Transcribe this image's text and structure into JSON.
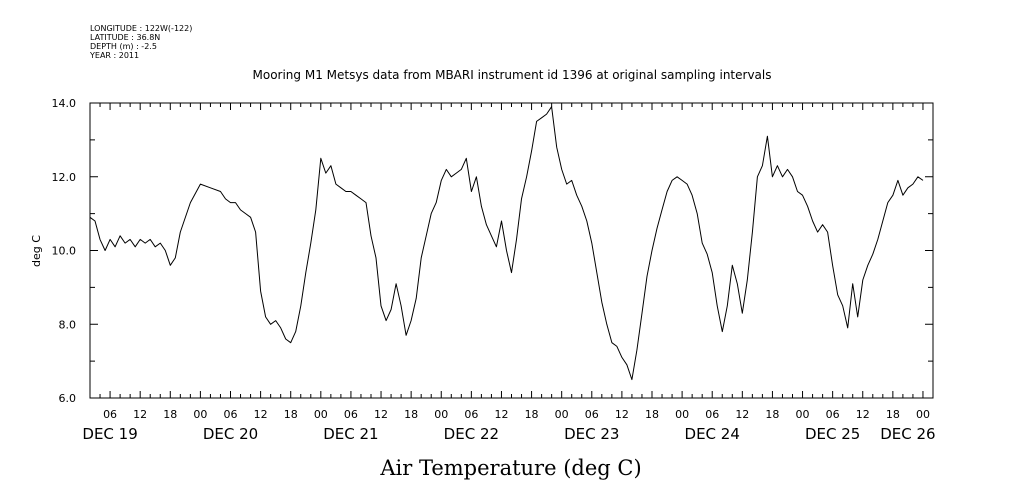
{
  "metadata": {
    "longitude": "LONGITUDE : 122W(-122)",
    "latitude": "LATITUDE : 36.8N",
    "depth": "DEPTH (m) : -2.5",
    "year": "YEAR : 2011"
  },
  "chart_data": {
    "type": "line",
    "title": "Mooring M1 Metsys data from MBARI instrument id 1396 at original sampling intervals",
    "xlabel": "Air Temperature (deg C)",
    "ylabel": "deg C",
    "ylim": [
      6.0,
      14.0
    ],
    "yticks": [
      "6.0",
      "8.0",
      "10.0",
      "12.0",
      "14.0"
    ],
    "x_unit": "hours since DEC 19 00:00",
    "xlim": [
      2,
      170
    ],
    "hour_ticks": [
      {
        "h": 6,
        "label": "06"
      },
      {
        "h": 12,
        "label": "12"
      },
      {
        "h": 18,
        "label": "18"
      },
      {
        "h": 24,
        "label": "00"
      },
      {
        "h": 30,
        "label": "06"
      },
      {
        "h": 36,
        "label": "12"
      },
      {
        "h": 42,
        "label": "18"
      },
      {
        "h": 48,
        "label": "00"
      },
      {
        "h": 54,
        "label": "06"
      },
      {
        "h": 60,
        "label": "12"
      },
      {
        "h": 66,
        "label": "18"
      },
      {
        "h": 72,
        "label": "00"
      },
      {
        "h": 78,
        "label": "06"
      },
      {
        "h": 84,
        "label": "12"
      },
      {
        "h": 90,
        "label": "18"
      },
      {
        "h": 96,
        "label": "00"
      },
      {
        "h": 102,
        "label": "06"
      },
      {
        "h": 108,
        "label": "12"
      },
      {
        "h": 114,
        "label": "18"
      },
      {
        "h": 120,
        "label": "00"
      },
      {
        "h": 126,
        "label": "06"
      },
      {
        "h": 132,
        "label": "12"
      },
      {
        "h": 138,
        "label": "18"
      },
      {
        "h": 144,
        "label": "00"
      },
      {
        "h": 150,
        "label": "06"
      },
      {
        "h": 156,
        "label": "12"
      },
      {
        "h": 162,
        "label": "18"
      },
      {
        "h": 168,
        "label": "00"
      }
    ],
    "day_labels": [
      {
        "h": 6,
        "label": "DEC 19"
      },
      {
        "h": 30,
        "label": "DEC 20"
      },
      {
        "h": 54,
        "label": "DEC 21"
      },
      {
        "h": 78,
        "label": "DEC 22"
      },
      {
        "h": 102,
        "label": "DEC 23"
      },
      {
        "h": 126,
        "label": "DEC 24"
      },
      {
        "h": 150,
        "label": "DEC 25"
      },
      {
        "h": 165,
        "label": "DEC 26"
      }
    ],
    "series": [
      {
        "name": "Air Temperature",
        "points": [
          [
            2,
            10.9
          ],
          [
            3,
            10.8
          ],
          [
            4,
            10.3
          ],
          [
            5,
            10.0
          ],
          [
            6,
            10.3
          ],
          [
            7,
            10.1
          ],
          [
            8,
            10.4
          ],
          [
            9,
            10.2
          ],
          [
            10,
            10.3
          ],
          [
            11,
            10.1
          ],
          [
            12,
            10.3
          ],
          [
            13,
            10.2
          ],
          [
            14,
            10.3
          ],
          [
            15,
            10.1
          ],
          [
            16,
            10.2
          ],
          [
            17,
            10.0
          ],
          [
            18,
            9.6
          ],
          [
            19,
            9.8
          ],
          [
            20,
            10.5
          ],
          [
            22,
            11.3
          ],
          [
            24,
            11.8
          ],
          [
            26,
            11.7
          ],
          [
            28,
            11.6
          ],
          [
            29,
            11.4
          ],
          [
            30,
            11.3
          ],
          [
            31,
            11.3
          ],
          [
            32,
            11.1
          ],
          [
            33,
            11.0
          ],
          [
            34,
            10.9
          ],
          [
            35,
            10.5
          ],
          [
            36,
            8.9
          ],
          [
            37,
            8.2
          ],
          [
            38,
            8.0
          ],
          [
            39,
            8.1
          ],
          [
            40,
            7.9
          ],
          [
            41,
            7.6
          ],
          [
            42,
            7.5
          ],
          [
            43,
            7.8
          ],
          [
            44,
            8.5
          ],
          [
            45,
            9.4
          ],
          [
            46,
            10.2
          ],
          [
            47,
            11.1
          ],
          [
            48,
            12.5
          ],
          [
            49,
            12.1
          ],
          [
            50,
            12.3
          ],
          [
            51,
            11.8
          ],
          [
            52,
            11.7
          ],
          [
            53,
            11.6
          ],
          [
            54,
            11.6
          ],
          [
            55,
            11.5
          ],
          [
            56,
            11.4
          ],
          [
            57,
            11.3
          ],
          [
            58,
            10.4
          ],
          [
            59,
            9.8
          ],
          [
            60,
            8.5
          ],
          [
            61,
            8.1
          ],
          [
            62,
            8.4
          ],
          [
            63,
            9.1
          ],
          [
            64,
            8.5
          ],
          [
            65,
            7.7
          ],
          [
            66,
            8.1
          ],
          [
            67,
            8.7
          ],
          [
            68,
            9.8
          ],
          [
            69,
            10.4
          ],
          [
            70,
            11.0
          ],
          [
            71,
            11.3
          ],
          [
            72,
            11.9
          ],
          [
            73,
            12.2
          ],
          [
            74,
            12.0
          ],
          [
            75,
            12.1
          ],
          [
            76,
            12.2
          ],
          [
            77,
            12.5
          ],
          [
            78,
            11.6
          ],
          [
            79,
            12.0
          ],
          [
            80,
            11.2
          ],
          [
            81,
            10.7
          ],
          [
            82,
            10.4
          ],
          [
            83,
            10.1
          ],
          [
            84,
            10.8
          ],
          [
            85,
            10.0
          ],
          [
            86,
            9.4
          ],
          [
            87,
            10.3
          ],
          [
            88,
            11.4
          ],
          [
            89,
            12.0
          ],
          [
            90,
            12.7
          ],
          [
            91,
            13.5
          ],
          [
            92,
            13.6
          ],
          [
            93,
            13.7
          ],
          [
            94,
            13.9
          ],
          [
            95,
            12.8
          ],
          [
            96,
            12.2
          ],
          [
            97,
            11.8
          ],
          [
            98,
            11.9
          ],
          [
            99,
            11.5
          ],
          [
            100,
            11.2
          ],
          [
            101,
            10.8
          ],
          [
            102,
            10.2
          ],
          [
            103,
            9.4
          ],
          [
            104,
            8.6
          ],
          [
            105,
            8.0
          ],
          [
            106,
            7.5
          ],
          [
            107,
            7.4
          ],
          [
            108,
            7.1
          ],
          [
            109,
            6.9
          ],
          [
            110,
            6.5
          ],
          [
            111,
            7.3
          ],
          [
            112,
            8.3
          ],
          [
            113,
            9.3
          ],
          [
            114,
            10.0
          ],
          [
            115,
            10.6
          ],
          [
            116,
            11.1
          ],
          [
            117,
            11.6
          ],
          [
            118,
            11.9
          ],
          [
            119,
            12.0
          ],
          [
            120,
            11.9
          ],
          [
            121,
            11.8
          ],
          [
            122,
            11.5
          ],
          [
            123,
            11.0
          ],
          [
            124,
            10.2
          ],
          [
            125,
            9.9
          ],
          [
            126,
            9.4
          ],
          [
            127,
            8.5
          ],
          [
            128,
            7.8
          ],
          [
            129,
            8.5
          ],
          [
            130,
            9.6
          ],
          [
            131,
            9.1
          ],
          [
            132,
            8.3
          ],
          [
            133,
            9.2
          ],
          [
            134,
            10.5
          ],
          [
            135,
            12.0
          ],
          [
            136,
            12.3
          ],
          [
            137,
            13.1
          ],
          [
            138,
            12.0
          ],
          [
            139,
            12.3
          ],
          [
            140,
            12.0
          ],
          [
            141,
            12.2
          ],
          [
            142,
            12.0
          ],
          [
            143,
            11.6
          ],
          [
            144,
            11.5
          ],
          [
            145,
            11.2
          ],
          [
            146,
            10.8
          ],
          [
            147,
            10.5
          ],
          [
            148,
            10.7
          ],
          [
            149,
            10.5
          ],
          [
            150,
            9.6
          ],
          [
            151,
            8.8
          ],
          [
            152,
            8.5
          ],
          [
            153,
            7.9
          ],
          [
            154,
            9.1
          ],
          [
            155,
            8.2
          ],
          [
            156,
            9.2
          ],
          [
            157,
            9.6
          ],
          [
            158,
            9.9
          ],
          [
            159,
            10.3
          ],
          [
            160,
            10.8
          ],
          [
            161,
            11.3
          ],
          [
            162,
            11.5
          ],
          [
            163,
            11.9
          ],
          [
            164,
            11.5
          ],
          [
            165,
            11.7
          ],
          [
            166,
            11.8
          ],
          [
            167,
            12.0
          ],
          [
            168,
            11.9
          ]
        ]
      }
    ]
  }
}
